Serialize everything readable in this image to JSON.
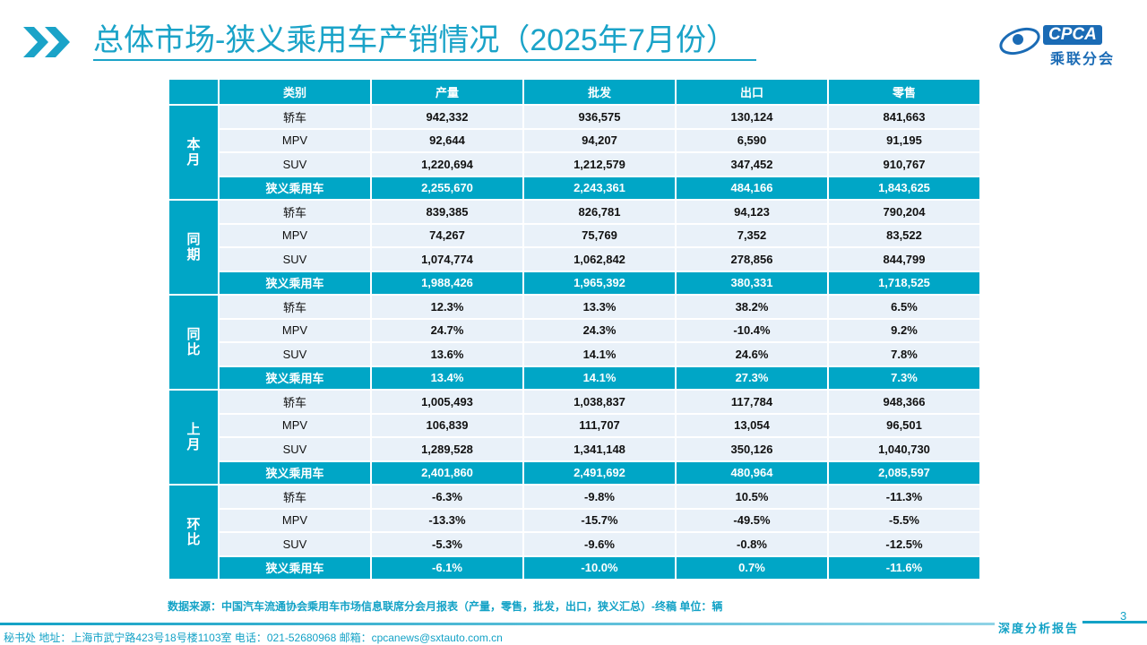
{
  "title": "总体市场-狭义乘用车产销情况（2025年7月份）",
  "logo": {
    "text": "CPCA",
    "sub": "乘联分会"
  },
  "table": {
    "headers": [
      "",
      "类别",
      "产量",
      "批发",
      "出口",
      "零售"
    ],
    "groups": [
      {
        "label": "本月",
        "rows": [
          [
            "轿车",
            "942,332",
            "936,575",
            "130,124",
            "841,663"
          ],
          [
            "MPV",
            "92,644",
            "94,207",
            "6,590",
            "91,195"
          ],
          [
            "SUV",
            "1,220,694",
            "1,212,579",
            "347,452",
            "910,767"
          ],
          [
            "狭义乘用车",
            "2,255,670",
            "2,243,361",
            "484,166",
            "1,843,625"
          ]
        ]
      },
      {
        "label": "同期",
        "rows": [
          [
            "轿车",
            "839,385",
            "826,781",
            "94,123",
            "790,204"
          ],
          [
            "MPV",
            "74,267",
            "75,769",
            "7,352",
            "83,522"
          ],
          [
            "SUV",
            "1,074,774",
            "1,062,842",
            "278,856",
            "844,799"
          ],
          [
            "狭义乘用车",
            "1,988,426",
            "1,965,392",
            "380,331",
            "1,718,525"
          ]
        ]
      },
      {
        "label": "同比",
        "rows": [
          [
            "轿车",
            "12.3%",
            "13.3%",
            "38.2%",
            "6.5%"
          ],
          [
            "MPV",
            "24.7%",
            "24.3%",
            "-10.4%",
            "9.2%"
          ],
          [
            "SUV",
            "13.6%",
            "14.1%",
            "24.6%",
            "7.8%"
          ],
          [
            "狭义乘用车",
            "13.4%",
            "14.1%",
            "27.3%",
            "7.3%"
          ]
        ]
      },
      {
        "label": "上月",
        "rows": [
          [
            "轿车",
            "1,005,493",
            "1,038,837",
            "117,784",
            "948,366"
          ],
          [
            "MPV",
            "106,839",
            "111,707",
            "13,054",
            "96,501"
          ],
          [
            "SUV",
            "1,289,528",
            "1,341,148",
            "350,126",
            "1,040,730"
          ],
          [
            "狭义乘用车",
            "2,401,860",
            "2,491,692",
            "480,964",
            "2,085,597"
          ]
        ]
      },
      {
        "label": "环比",
        "rows": [
          [
            "轿车",
            "-6.3%",
            "-9.8%",
            "10.5%",
            "-11.3%"
          ],
          [
            "MPV",
            "-13.3%",
            "-15.7%",
            "-49.5%",
            "-5.5%"
          ],
          [
            "SUV",
            "-5.3%",
            "-9.6%",
            "-0.8%",
            "-12.5%"
          ],
          [
            "狭义乘用车",
            "-6.1%",
            "-10.0%",
            "0.7%",
            "-11.6%"
          ]
        ]
      }
    ]
  },
  "source": "数据来源：中国汽车流通协会乘用车市场信息联席分会月报表（产量，零售，批发，出口，狭义汇总）-终稿    单位：辆",
  "page_number": "3",
  "report_tag": "深度分析报告",
  "footer": "秘书处   地址：上海市武宁路423号18号楼1103室  电话：021-52680968   邮箱：cpcanews@sxtauto.com.cn"
}
